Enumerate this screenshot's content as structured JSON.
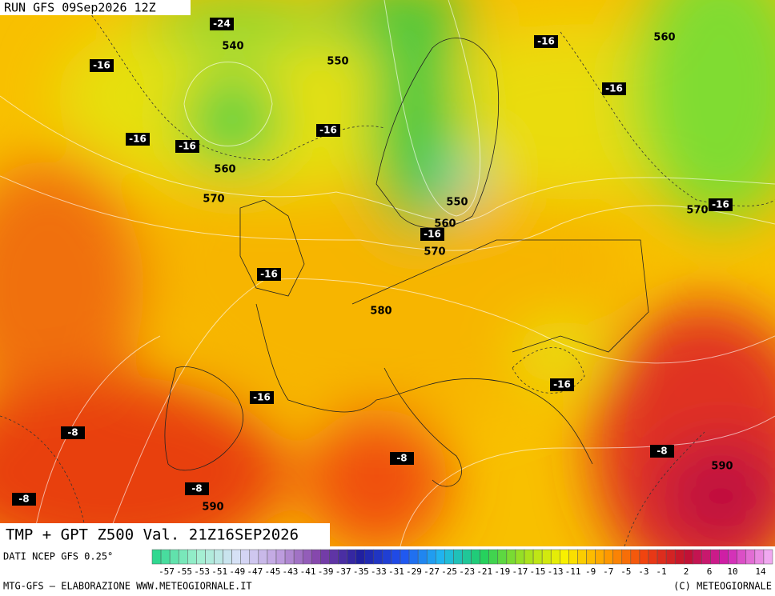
{
  "header": {
    "run": "RUN GFS 09Sep2026 12Z"
  },
  "map": {
    "isoline_labels": [
      "540",
      "550",
      "560",
      "560",
      "570",
      "550",
      "560",
      "570",
      "580",
      "570",
      "590",
      "590"
    ],
    "temperature_labels": [
      "-24",
      "-16",
      "-16",
      "-16",
      "-16",
      "-16",
      "-16",
      "-16",
      "-16",
      "-16",
      "-16",
      "-16",
      "-8",
      "-8",
      "-8",
      "-8",
      "-8"
    ]
  },
  "footer": {
    "title": "TMP + GPT Z500 Val. 21Z16SEP2026",
    "source": "DATI NCEP GFS 0.25°",
    "credit": "MTG-GFS — ELABORAZIONE WWW.METEOGIORNALE.IT",
    "copyright": "(C) METEOGIORNALE",
    "scale_labels": [
      "-57",
      "-55",
      "-53",
      "-51",
      "-49",
      "-47",
      "-45",
      "-43",
      "-41",
      "-39",
      "-37",
      "-35",
      "-33",
      "-31",
      "-29",
      "-27",
      "-25",
      "-23",
      "-21",
      "-19",
      "-17",
      "-15",
      "-13",
      "-11",
      "-9",
      "-7",
      "-5",
      "-3",
      "-1",
      "2",
      "6",
      "10",
      "14"
    ]
  }
}
